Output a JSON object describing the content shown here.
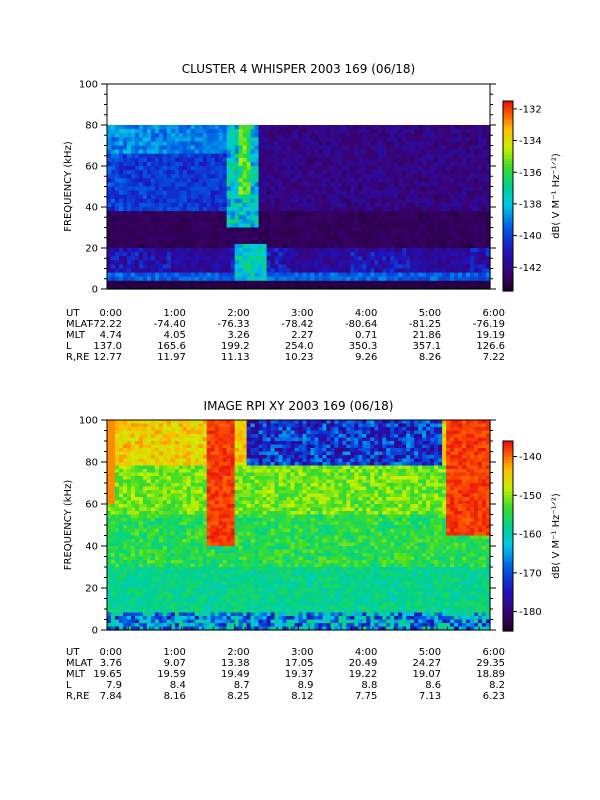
{
  "chart_data": [
    {
      "type": "heatmap",
      "title": "CLUSTER 4 WHISPER 2003 169 (06/18)",
      "ylabel": "FREQUENCY (kHz)",
      "ylim": [
        0,
        100
      ],
      "yticks": [
        "0",
        "20",
        "40",
        "60",
        "80",
        "100"
      ],
      "xlim": [
        "0:00",
        "6:00"
      ],
      "colorbar": {
        "label": "dB( V M⁻¹ Hz⁻¹ᐟ²)",
        "range": [
          -143.5,
          -131.5
        ],
        "ticks": [
          "-132",
          "-134",
          "-136",
          "-138",
          "-140",
          "-142"
        ]
      },
      "data_region_max_khz": 80,
      "ephemeris": {
        "labels": [
          "UT",
          "MLAT",
          "MLT",
          "L",
          "R,RE"
        ],
        "columns": [
          {
            "ut": "0:00",
            "mlat": "-72.22",
            "mlt": "4.74",
            "l": "137.0",
            "re": "12.77"
          },
          {
            "ut": "1:00",
            "mlat": "-74.40",
            "mlt": "4.05",
            "l": "165.6",
            "re": "11.97"
          },
          {
            "ut": "2:00",
            "mlat": "-76.33",
            "mlt": "3.26",
            "l": "199.2",
            "re": "11.13"
          },
          {
            "ut": "3:00",
            "mlat": "-78.42",
            "mlt": "2.27",
            "l": "254.0",
            "re": "10.23"
          },
          {
            "ut": "4:00",
            "mlat": "-80.64",
            "mlt": "0.71",
            "l": "350.3",
            "re": "9.26"
          },
          {
            "ut": "5:00",
            "mlat": "-81.25",
            "mlt": "21.86",
            "l": "357.1",
            "re": "8.26"
          },
          {
            "ut": "6:00",
            "mlat": "-76.19",
            "mlt": "19.19",
            "l": "126.6",
            "re": "7.22"
          }
        ]
      }
    },
    {
      "type": "heatmap",
      "title": "IMAGE RPI XY 2003 169 (06/18)",
      "ylabel": "FREQUENCY (kHz)",
      "ylim": [
        0,
        100
      ],
      "yticks": [
        "0",
        "20",
        "40",
        "60",
        "80",
        "100"
      ],
      "xlim": [
        "0:00",
        "6:00"
      ],
      "colorbar": {
        "label": "dB( V M⁻¹ Hz⁻¹ᐟ²)",
        "range": [
          -185,
          -136
        ],
        "ticks": [
          "-140",
          "-150",
          "-160",
          "-170",
          "-180"
        ]
      },
      "ephemeris": {
        "labels": [
          "UT",
          "MLAT",
          "MLT",
          "L",
          "R,RE"
        ],
        "columns": [
          {
            "ut": "0:00",
            "mlat": "3.76",
            "mlt": "19.65",
            "l": "7.9",
            "re": "7.84"
          },
          {
            "ut": "1:00",
            "mlat": "9.07",
            "mlt": "19.59",
            "l": "8.4",
            "re": "8.16"
          },
          {
            "ut": "2:00",
            "mlat": "13.38",
            "mlt": "19.49",
            "l": "8.7",
            "re": "8.25"
          },
          {
            "ut": "3:00",
            "mlat": "17.05",
            "mlt": "19.37",
            "l": "8.9",
            "re": "8.12"
          },
          {
            "ut": "4:00",
            "mlat": "20.49",
            "mlt": "19.22",
            "l": "8.8",
            "re": "7.75"
          },
          {
            "ut": "5:00",
            "mlat": "24.27",
            "mlt": "19.07",
            "l": "8.6",
            "re": "7.13"
          },
          {
            "ut": "6:00",
            "mlat": "29.35",
            "mlt": "18.89",
            "l": "8.2",
            "re": "6.23"
          }
        ]
      }
    }
  ]
}
